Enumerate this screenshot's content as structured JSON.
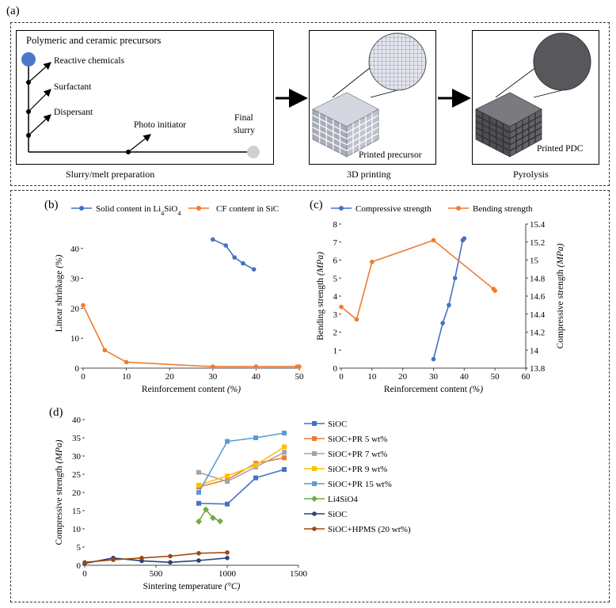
{
  "panel_a": {
    "label": "(a)",
    "box1": {
      "title": "Polymeric and ceramic precursors",
      "items": [
        "Reactive chemicals",
        "Surfactant",
        "Dispersant",
        "Photo initiator"
      ],
      "final": [
        "Final",
        "slurry"
      ],
      "caption": "Slurry/melt preparation"
    },
    "box2": {
      "inner": "Printed precursor",
      "caption": "3D printing"
    },
    "box3": {
      "inner": "Printed PDC",
      "caption": "Pyrolysis"
    },
    "colors": {
      "dot_start": "#4a78c9",
      "dot_end": "#cfcfcf",
      "lattice_light": "#b8bcc8",
      "lattice_dark": "#5a5a5e"
    }
  },
  "chart_data": [
    {
      "id": "b",
      "label": "(b)",
      "type": "line",
      "xlabel": "Reinforcement content",
      "xunit": "(%)",
      "ylabel": "Linear shrinkage",
      "yunit": "(%)",
      "xlim": [
        0,
        50
      ],
      "ylim": [
        0,
        50
      ],
      "xticks": [
        0,
        10,
        20,
        30,
        40,
        50
      ],
      "yticks": [
        0,
        10,
        20,
        30,
        40
      ],
      "legend": [
        "Solid content in Li",
        "CF content in SiC"
      ],
      "series": [
        {
          "name": "Solid content in Li4SiO4",
          "color": "#4472c4",
          "points": [
            [
              30,
              43
            ],
            [
              33,
              41
            ],
            [
              35,
              37
            ],
            [
              37,
              35
            ],
            [
              39.5,
              33
            ]
          ]
        },
        {
          "name": "CF content in SiC",
          "color": "#ed7d31",
          "points": [
            [
              0,
              21
            ],
            [
              5,
              6
            ],
            [
              10,
              2
            ],
            [
              30,
              0.5
            ],
            [
              40,
              0.5
            ],
            [
              49.5,
              0.5
            ],
            [
              50,
              0.5
            ]
          ]
        }
      ]
    },
    {
      "id": "c",
      "label": "(c)",
      "type": "line",
      "xlabel": "Reinforcement content",
      "xunit": "(%)",
      "ylabel": "Bending strength",
      "yunit": "(MPa)",
      "y2label": "Compressive strength",
      "y2unit": "(MPa)",
      "xlim": [
        0,
        60
      ],
      "ylim": [
        0,
        8
      ],
      "y2lim": [
        13.8,
        15.4
      ],
      "xticks": [
        0,
        10,
        20,
        30,
        40,
        50,
        60
      ],
      "yticks": [
        0,
        1,
        2,
        3,
        4,
        5,
        6,
        7,
        8
      ],
      "y2ticks": [
        "13.8",
        "14",
        "14.2",
        "14.4",
        "14.6",
        "14.8",
        "15",
        "15.2",
        "15.4"
      ],
      "legend": [
        "Compressive strength",
        "Bending strength"
      ],
      "series": [
        {
          "name": "Compressive strength",
          "color": "#4472c4",
          "axis": "right",
          "points": [
            [
              30,
              13.9
            ],
            [
              33,
              14.3
            ],
            [
              35,
              14.5
            ],
            [
              37,
              14.8
            ],
            [
              39.5,
              15.22
            ],
            [
              40,
              15.24
            ]
          ]
        },
        {
          "name": "Bending strength",
          "color": "#ed7d31",
          "axis": "left",
          "points": [
            [
              0,
              3.4
            ],
            [
              5,
              2.7
            ],
            [
              10,
              5.9
            ],
            [
              30,
              7.1
            ],
            [
              49.5,
              4.4
            ],
            [
              50,
              4.3
            ]
          ]
        }
      ]
    },
    {
      "id": "d",
      "label": "(d)",
      "type": "line",
      "xlabel": "Sintering temperature",
      "xunit": "(°C)",
      "ylabel": "Compressive strength",
      "yunit": "(MPa)",
      "xlim": [
        0,
        1500
      ],
      "ylim": [
        0,
        40
      ],
      "xticks": [
        0,
        500,
        1000,
        1500
      ],
      "yticks": [
        0,
        5,
        10,
        15,
        20,
        25,
        30,
        35,
        40
      ],
      "legend_position": "right",
      "series": [
        {
          "name": "SiOC",
          "color": "#4472c4",
          "marker": "square",
          "points": [
            [
              800,
              17
            ],
            [
              1000,
              16.8
            ],
            [
              1200,
              24
            ],
            [
              1400,
              26.3
            ]
          ]
        },
        {
          "name": "SiOC+PR 5 wt%",
          "color": "#ed7d31",
          "marker": "square",
          "points": [
            [
              800,
              21.5
            ],
            [
              1000,
              23.5
            ],
            [
              1200,
              28
            ],
            [
              1400,
              29.5
            ]
          ]
        },
        {
          "name": "SiOC+PR 7 wt%",
          "color": "#a5a5a5",
          "marker": "square",
          "points": [
            [
              800,
              25.5
            ],
            [
              1000,
              23
            ],
            [
              1200,
              27
            ],
            [
              1400,
              31
            ]
          ]
        },
        {
          "name": "SiOC+PR 9 wt%",
          "color": "#ffc000",
          "marker": "square",
          "points": [
            [
              800,
              22
            ],
            [
              1000,
              24.5
            ],
            [
              1200,
              27.5
            ],
            [
              1400,
              32.5
            ]
          ]
        },
        {
          "name": "SiOC+PR 15 wt%",
          "color": "#5b9bd5",
          "marker": "square",
          "points": [
            [
              800,
              20
            ],
            [
              1000,
              34
            ],
            [
              1200,
              35
            ],
            [
              1400,
              36.3
            ]
          ]
        },
        {
          "name": "Li4SiO4",
          "color": "#70ad47",
          "marker": "diamond",
          "points": [
            [
              800,
              12
            ],
            [
              850,
              15.3
            ],
            [
              900,
              13
            ],
            [
              950,
              12.1
            ]
          ]
        },
        {
          "name": "SiOC",
          "color": "#264478",
          "marker": "circle",
          "points": [
            [
              0,
              0.5
            ],
            [
              200,
              2
            ],
            [
              400,
              1.2
            ],
            [
              600,
              0.8
            ],
            [
              800,
              1.3
            ],
            [
              1000,
              2
            ]
          ]
        },
        {
          "name": "SiOC+HPMS (20 wt%)",
          "color": "#9e480e",
          "marker": "circle",
          "points": [
            [
              0,
              0.8
            ],
            [
              200,
              1.5
            ],
            [
              400,
              2
            ],
            [
              600,
              2.5
            ],
            [
              800,
              3.3
            ],
            [
              1000,
              3.5
            ]
          ]
        }
      ]
    }
  ]
}
